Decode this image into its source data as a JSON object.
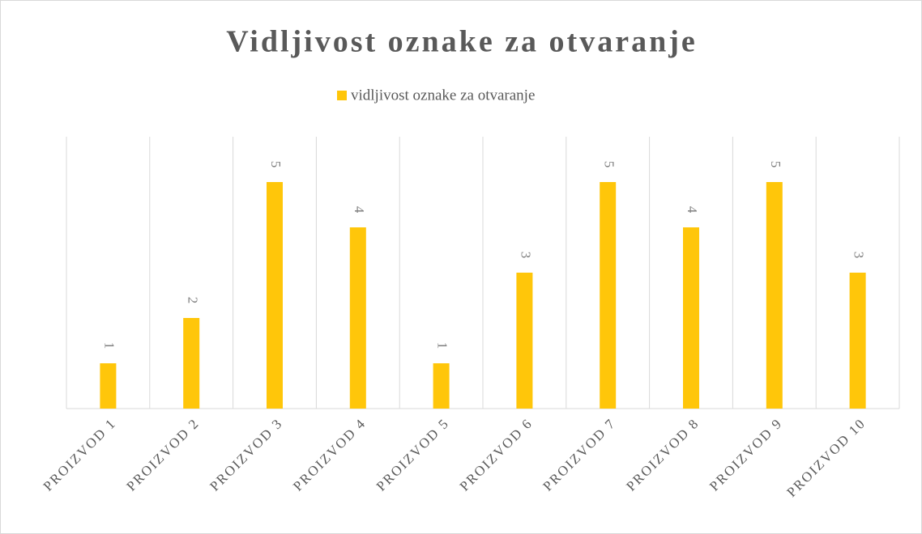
{
  "chart_data": {
    "type": "bar",
    "title": "Vidljivost oznake za otvaranje",
    "categories": [
      "PROIZVOD 1",
      "PROIZVOD 2",
      "PROIZVOD 3",
      "PROIZVOD 4",
      "PROIZVOD 5",
      "PROIZVOD 6",
      "PROIZVOD 7",
      "PROIZVOD 8",
      "PROIZVOD 9",
      "PROIZVOD 10"
    ],
    "series": [
      {
        "name": "vidljivost oznake za otvaranje",
        "color": "#ffc60a",
        "values": [
          1,
          2,
          5,
          4,
          1,
          3,
          5,
          4,
          5,
          3
        ]
      }
    ],
    "ylim": [
      0,
      6
    ],
    "legend": "top"
  }
}
